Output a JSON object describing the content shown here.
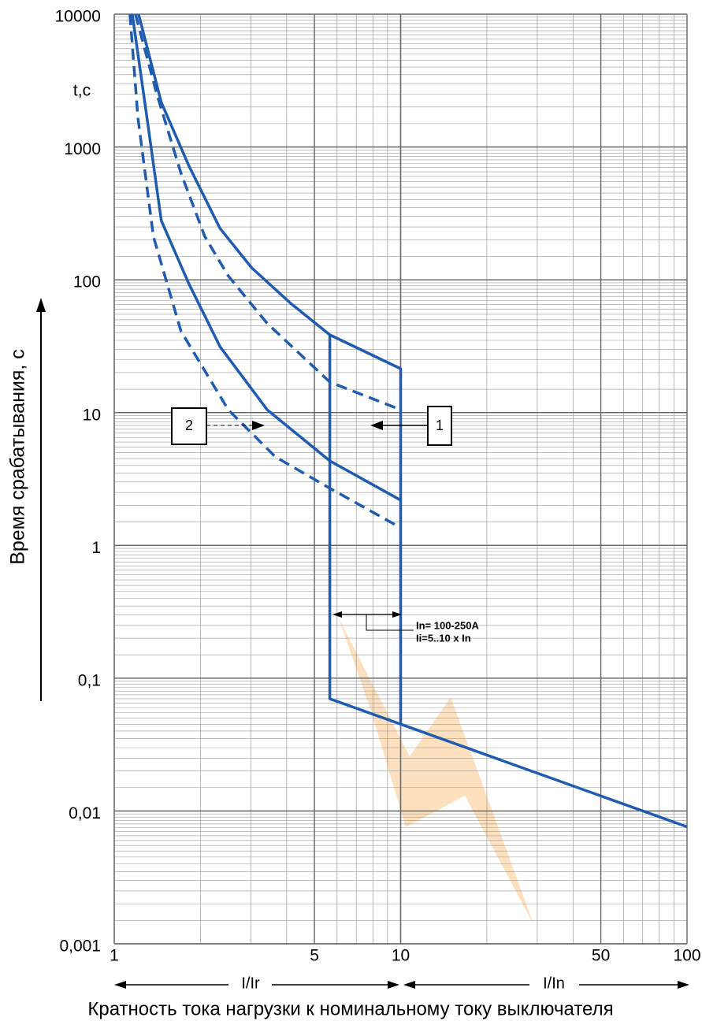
{
  "chart_data": {
    "type": "line",
    "ylabel": "Время срабатывания, с",
    "xlabel": "Кратность тока нагрузки к номинальному току выключателя",
    "y_unit_label": "t,c",
    "x_scale_labels": [
      "I/Ir",
      "I/In"
    ],
    "annotations": [
      "1",
      "2",
      "In= 100-250A",
      "Ii=5..10 x In"
    ],
    "xscale": "log",
    "yscale": "log",
    "grid": true,
    "xlim": [
      1,
      100
    ],
    "ylim": [
      0.001,
      10000
    ],
    "xticks": [
      1,
      5,
      10,
      50,
      100
    ],
    "yticks": [
      10000,
      1000,
      100,
      10,
      1,
      {
        "value": 0.1,
        "label": "0,1"
      },
      {
        "value": 0.01,
        "label": "0,01"
      },
      {
        "value": 0.001,
        "label": "0,001"
      }
    ],
    "series": [
      {
        "color": "#1f5cb0",
        "style": "solid",
        "x": [
          1.216,
          1.46,
          1.82,
          2.34,
          3.02,
          4.13,
          5.66,
          10,
          10
        ],
        "values": [
          10000,
          2170,
          726,
          244,
          123,
          66.5,
          38.5,
          21.4,
          0.046
        ]
      },
      {
        "color": "#1f5cb0",
        "style": "solid",
        "x": [
          5.66,
          5.66,
          100
        ],
        "values": [
          38.5,
          0.07,
          0.0076
        ]
      },
      {
        "color": "#1f5cb0",
        "style": "solid",
        "x": [
          1.156,
          1.29,
          1.46,
          1.82,
          2.34,
          3.42,
          5.66,
          10
        ],
        "values": [
          10000,
          1890,
          279,
          94,
          31.4,
          10.5,
          4.33,
          2.19
        ]
      },
      {
        "color": "#1f5cb0",
        "style": "dashed",
        "x": [
          1.186,
          1.41,
          1.71,
          2.07,
          2.5,
          3.42,
          5.66,
          10
        ],
        "values": [
          10000,
          2480,
          634,
          212,
          107,
          47,
          17,
          10.5
        ]
      },
      {
        "color": "#1f5cb0",
        "style": "dashed",
        "x": [
          1.134,
          1.21,
          1.37,
          1.71,
          2.5,
          3.65,
          5.66,
          10
        ],
        "values": [
          10000,
          1650,
          212,
          41,
          10.5,
          4.65,
          2.69,
          1.36
        ]
      }
    ]
  }
}
